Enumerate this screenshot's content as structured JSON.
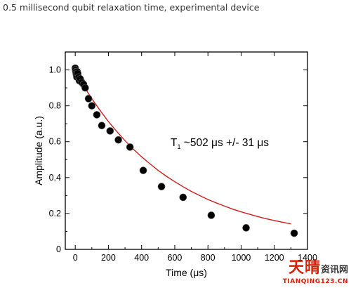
{
  "caption": "0.5 millisecond qubit relaxation time, experimental device",
  "watermark": {
    "main": "天晴",
    "side": "资讯网",
    "url": "TIANQING123.CN"
  },
  "chart_data": {
    "type": "scatter",
    "title": "",
    "xlabel": "Time (μs)",
    "ylabel": "Amplitude (a.u.)",
    "xlim": [
      -60,
      1400
    ],
    "ylim": [
      0,
      1.1
    ],
    "xticks": [
      0,
      200,
      400,
      600,
      800,
      1000,
      1200,
      1400
    ],
    "yticks": [
      0,
      0.2,
      0.4,
      0.6,
      0.8,
      1.0
    ],
    "xtick_labels": [
      "0",
      "200",
      "400",
      "600",
      "800",
      "1000",
      "1200",
      "1400"
    ],
    "ytick_labels": [
      "0",
      "0.2",
      "0.4",
      "0.6",
      "0.8",
      "1.0"
    ],
    "grid": false,
    "annotation": {
      "prefix": "T",
      "subscript": "1",
      "text": " ~502 μs +/- 31 μs"
    },
    "series": [
      {
        "x": [
          0,
          2,
          4,
          6,
          8,
          10,
          12,
          15,
          20,
          25,
          30,
          40,
          50,
          60,
          80,
          100,
          130,
          160,
          210,
          260,
          330,
          410,
          520,
          650,
          820,
          1030,
          1320
        ],
        "y": [
          1.01,
          1.0,
          0.99,
          0.98,
          0.97,
          0.96,
          0.99,
          0.98,
          0.96,
          0.94,
          0.95,
          0.93,
          0.92,
          0.9,
          0.84,
          0.8,
          0.75,
          0.69,
          0.66,
          0.61,
          0.57,
          0.44,
          0.35,
          0.29,
          0.19,
          0.12,
          0.09
        ]
      }
    ],
    "fit": {
      "x": [
        0,
        25,
        50,
        75,
        100,
        150,
        200,
        250,
        300,
        350,
        400,
        450,
        500,
        550,
        600,
        650,
        700,
        750,
        800,
        850,
        900,
        950,
        1000,
        1050,
        1100,
        1150,
        1200,
        1250,
        1300
      ],
      "y": [
        0.99,
        0.951,
        0.912,
        0.875,
        0.84,
        0.774,
        0.713,
        0.657,
        0.606,
        0.559,
        0.516,
        0.477,
        0.44,
        0.407,
        0.377,
        0.349,
        0.323,
        0.3,
        0.278,
        0.259,
        0.241,
        0.224,
        0.209,
        0.196,
        0.183,
        0.171,
        0.161,
        0.151,
        0.142
      ],
      "color": "#cc1f1f"
    },
    "marker_color": "#000000"
  }
}
